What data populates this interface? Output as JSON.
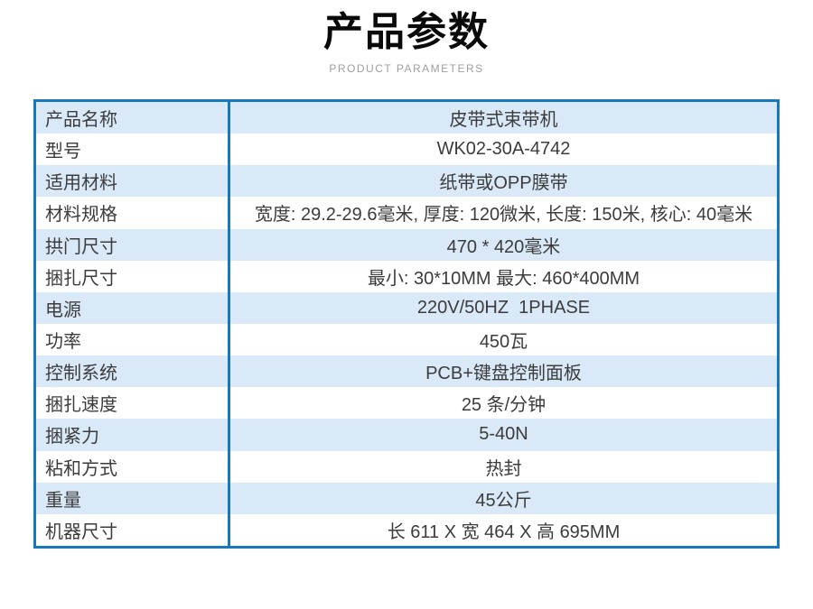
{
  "header": {
    "title": "产品参数",
    "subtitle": "PRODUCT PARAMETERS"
  },
  "table": {
    "rows": [
      {
        "label": "产品名称",
        "value": "皮带式束带机"
      },
      {
        "label": "型号",
        "value": "WK02-30A-4742"
      },
      {
        "label": "适用材料",
        "value": "纸带或OPP膜带"
      },
      {
        "label": "材料规格",
        "value": "宽度: 29.2-29.6毫米, 厚度: 120微米, 长度: 150米, 核心: 40毫米"
      },
      {
        "label": "拱门尺寸",
        "value": "470 * 420毫米"
      },
      {
        "label": "捆扎尺寸",
        "value": "最小: 30*10MM 最大: 460*400MM"
      },
      {
        "label": "电源",
        "value": "220V/50HZ  1PHASE"
      },
      {
        "label": "功率",
        "value": "450瓦"
      },
      {
        "label": "控制系统",
        "value": "PCB+键盘控制面板"
      },
      {
        "label": "捆扎速度",
        "value": "25 条/分钟"
      },
      {
        "label": "捆紧力",
        "value": "5-40N"
      },
      {
        "label": "粘和方式",
        "value": "热封"
      },
      {
        "label": "重量",
        "value": "45公斤"
      },
      {
        "label": "机器尺寸",
        "value": "长 611 X 宽 464 X 高 695MM"
      }
    ]
  },
  "colors": {
    "border": "#1878be",
    "row_alt": "#d9e9f8",
    "text": "#3c3c3c",
    "subtitle": "#9e9e9e"
  }
}
